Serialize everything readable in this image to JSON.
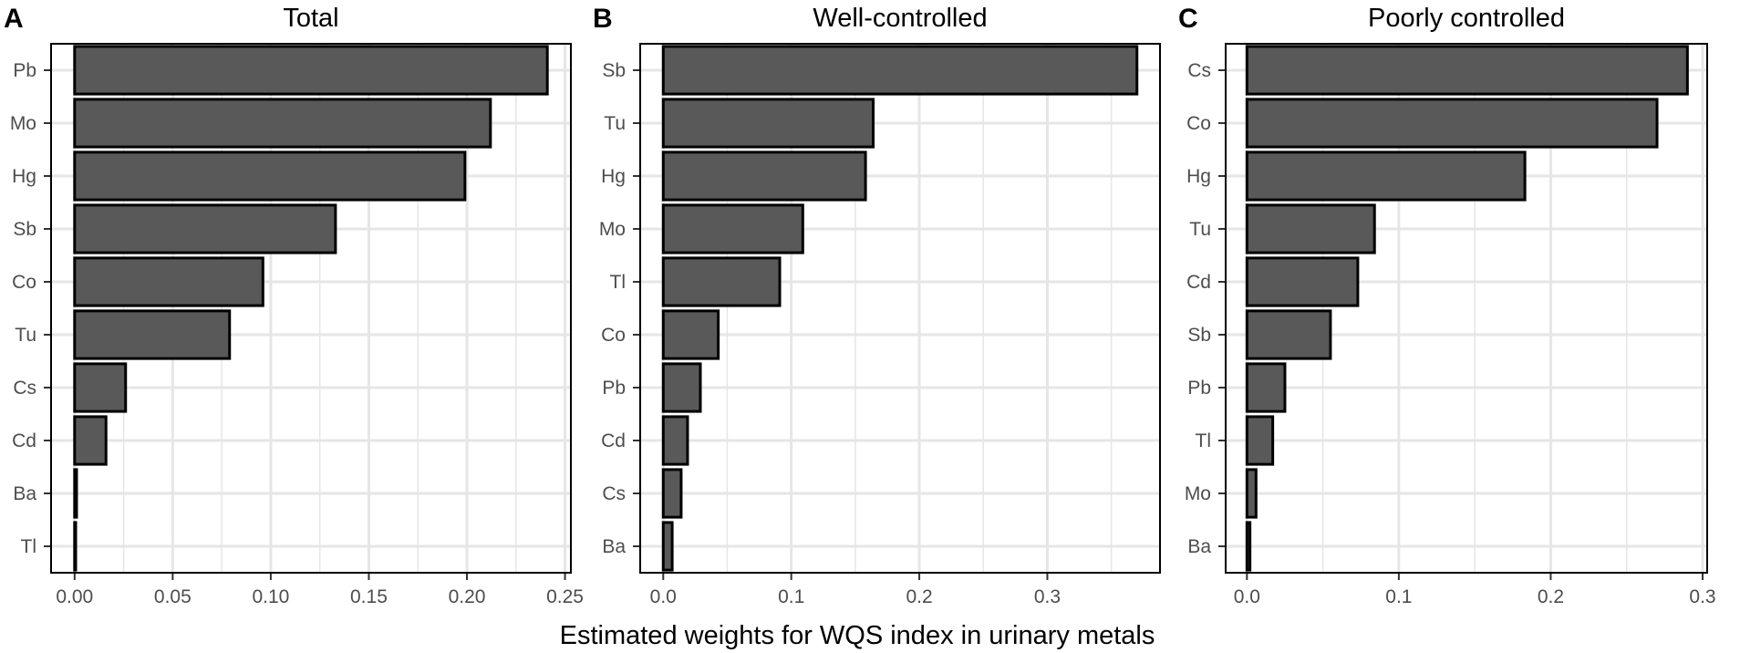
{
  "chart_data": [
    {
      "type": "bar",
      "orientation": "horizontal",
      "panel": "A",
      "title": "Total",
      "categories": [
        "Pb",
        "Mo",
        "Hg",
        "Sb",
        "Co",
        "Tu",
        "Cs",
        "Cd",
        "Ba",
        "Tl"
      ],
      "values": [
        0.241,
        0.212,
        0.199,
        0.133,
        0.096,
        0.079,
        0.026,
        0.016,
        0.001,
        0.0005
      ],
      "xlim": [
        -0.012,
        0.253
      ],
      "ticks": [
        0,
        0.05,
        0.1,
        0.15,
        0.2,
        0.25
      ],
      "tick_labels": [
        "0.00",
        "0.05",
        "0.10",
        "0.15",
        "0.20",
        "0.25"
      ],
      "grid": true
    },
    {
      "type": "bar",
      "orientation": "horizontal",
      "panel": "B",
      "title": "Well-controlled",
      "categories": [
        "Sb",
        "Tu",
        "Hg",
        "Mo",
        "Tl",
        "Co",
        "Pb",
        "Cd",
        "Cs",
        "Ba"
      ],
      "values": [
        0.37,
        0.164,
        0.158,
        0.109,
        0.091,
        0.043,
        0.029,
        0.019,
        0.014,
        0.007
      ],
      "xlim": [
        -0.018,
        0.388
      ],
      "ticks": [
        0,
        0.1,
        0.2,
        0.3
      ],
      "tick_labels": [
        "0.0",
        "0.1",
        "0.2",
        "0.3"
      ],
      "grid": true
    },
    {
      "type": "bar",
      "orientation": "horizontal",
      "panel": "C",
      "title": "Poorly controlled",
      "categories": [
        "Cs",
        "Co",
        "Hg",
        "Tu",
        "Cd",
        "Sb",
        "Pb",
        "Tl",
        "Mo",
        "Ba"
      ],
      "values": [
        0.29,
        0.27,
        0.183,
        0.084,
        0.073,
        0.055,
        0.025,
        0.017,
        0.006,
        0.002
      ],
      "xlim": [
        -0.014,
        0.303
      ],
      "ticks": [
        0,
        0.1,
        0.2,
        0.3
      ],
      "tick_labels": [
        "0.0",
        "0.1",
        "0.2",
        "0.3"
      ],
      "grid": true
    }
  ],
  "xlabel": "Estimated weights for WQS index in urinary metals",
  "colors": {
    "bar_fill": "#595959",
    "bar_stroke": "#000000",
    "grid": "#e6e6e6",
    "frame": "#000000",
    "text": "#4d4d4d"
  }
}
